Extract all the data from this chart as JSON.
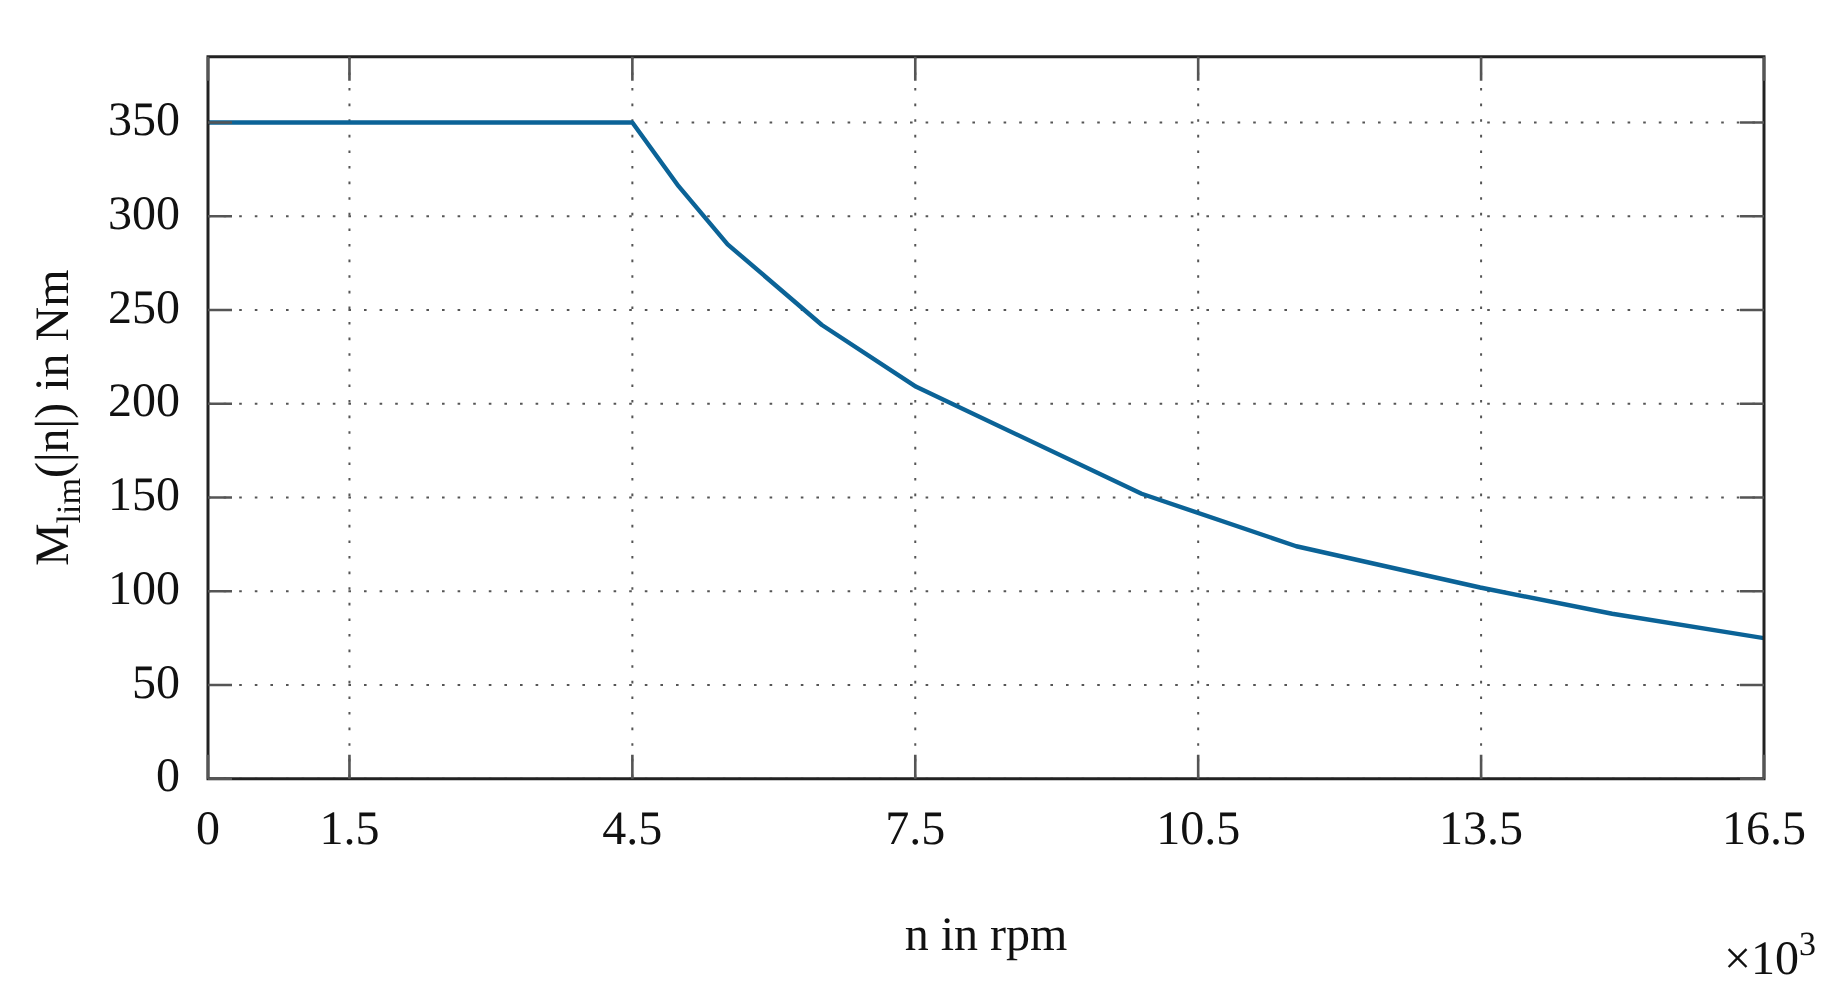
{
  "chart_data": {
    "type": "line",
    "xlabel": "n in rpm",
    "ylabel": "M$_{lim}$(|n|) in Nm",
    "annotations": [
      "×10$^{3}$"
    ],
    "series": [
      {
        "color": "#0b6397",
        "x": [
          0,
          4.5,
          4.99,
          5.51,
          6.51,
          7.51,
          9.9,
          11.54,
          13.49,
          14.89,
          16.5
        ],
        "values": [
          350,
          350,
          316,
          285,
          242,
          209,
          152,
          124,
          102,
          88,
          75
        ]
      }
    ],
    "xlim": [
      0,
      16.5
    ],
    "xticks": [
      0,
      1.5,
      4.5,
      7.5,
      10.5,
      13.5,
      16.5
    ],
    "ylim": [
      0,
      385
    ],
    "yticks": [
      0,
      50,
      100,
      150,
      200,
      250,
      300,
      350
    ],
    "grid": true,
    "legend": false,
    "marker": "none",
    "line_style": "solid"
  }
}
